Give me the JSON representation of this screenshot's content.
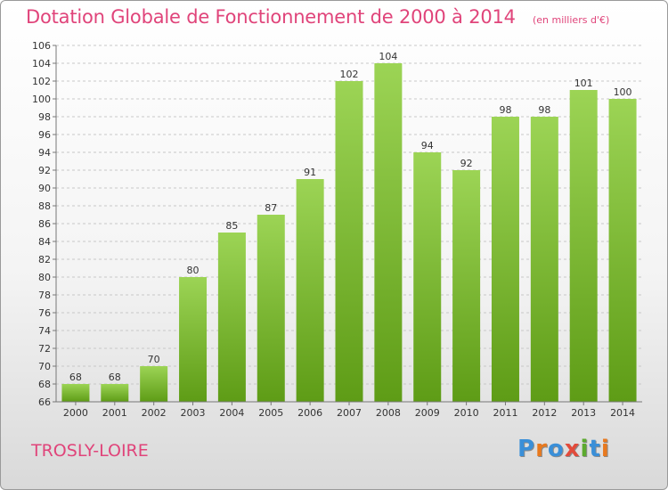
{
  "header": {
    "title": "Dotation Globale de Fonctionnement de 2000 à 2014",
    "unit": "(en milliers d'€)"
  },
  "footer": {
    "commune": "TROSLY-LOIRE",
    "logo": "Proxiti"
  },
  "colors": {
    "title": "#e0447a",
    "bar_top": "#9cd455",
    "bar_bottom": "#5e9c16",
    "logo": [
      "#3a8fd8",
      "#e8791e",
      "#3a8fd8",
      "#e24b3b",
      "#5caa2f",
      "#3a8fd8",
      "#e8791e"
    ]
  },
  "chart_data": {
    "type": "bar",
    "title": "Dotation Globale de Fonctionnement de 2000 à 2014",
    "subtitle": "(en milliers d'€)",
    "categories": [
      "2000",
      "2001",
      "2002",
      "2003",
      "2004",
      "2005",
      "2006",
      "2007",
      "2008",
      "2009",
      "2010",
      "2011",
      "2012",
      "2013",
      "2014"
    ],
    "values": [
      68,
      68,
      70,
      80,
      85,
      87,
      91,
      102,
      104,
      94,
      92,
      98,
      98,
      101,
      100
    ],
    "ylim": [
      66,
      106
    ],
    "yticks": [
      66,
      68,
      70,
      72,
      74,
      76,
      78,
      80,
      82,
      84,
      86,
      88,
      90,
      92,
      94,
      96,
      98,
      100,
      102,
      104,
      106
    ],
    "grid": "horizontal dashed",
    "xlabel": "",
    "ylabel": ""
  }
}
